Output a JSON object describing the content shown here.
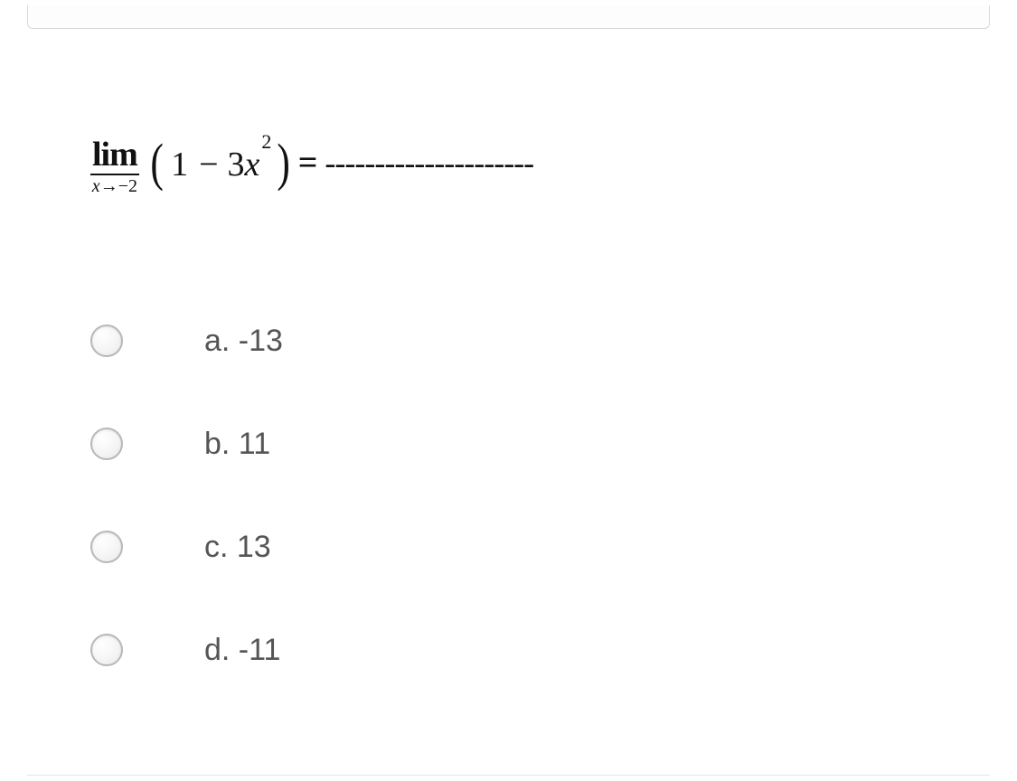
{
  "question": {
    "limit_text": "lim",
    "limit_sub_var": "x",
    "limit_sub_arrow": "→",
    "limit_sub_val": "−2",
    "expr_const": "1",
    "expr_op": "−",
    "expr_coeff": "3",
    "expr_var": "x",
    "expr_power": "2",
    "equals": "=",
    "blank": "---------------------"
  },
  "options": [
    {
      "label": "a. -13"
    },
    {
      "label": "b. 11"
    },
    {
      "label": "c. 13"
    },
    {
      "label": "d. -11"
    }
  ],
  "colors": {
    "text": "#444444",
    "math": "#111111",
    "radio_border": "#b8b8b8",
    "background": "#ffffff"
  }
}
